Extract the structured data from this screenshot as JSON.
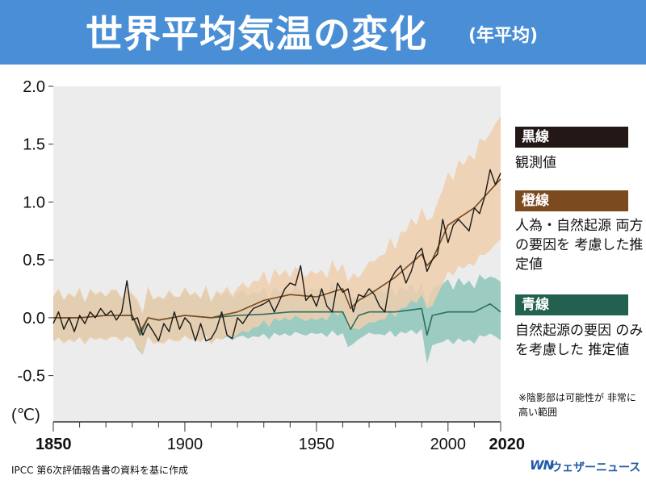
{
  "header": {
    "title": "世界平均気温の変化",
    "subtitle": "(年平均)"
  },
  "legend": [
    {
      "head": "黒線",
      "desc": "観測値",
      "color": "#231815"
    },
    {
      "head": "橙線",
      "desc": "人為・自然起源 両方の要因を 考慮した推定値",
      "color": "#7b4a1e"
    },
    {
      "head": "青線",
      "desc": "自然起源の要因 のみを考慮した 推定値",
      "color": "#22614f"
    }
  ],
  "note": "※陰影部は可能性が 非常に高い範囲",
  "source": "IPCC 第6次評価報告書の資料を基に作成",
  "logo": {
    "mark": "WN",
    "text": "ウェザーニュース"
  },
  "chart_data": {
    "type": "line",
    "xlim": [
      1850,
      2020
    ],
    "ylim": [
      -0.9,
      2.0
    ],
    "y_unit": "(℃)",
    "x_ticks": [
      "1850",
      "1900",
      "1950",
      "2000",
      "2020"
    ],
    "y_ticks": [
      "2.0",
      "1.5",
      "1.0",
      "0.5",
      "0.0",
      "-0.5"
    ],
    "colors": {
      "observed": "#1a1a1a",
      "both": "#7b4a1e",
      "both_band": "#f0cfae",
      "natural": "#2f6e5e",
      "natural_band": "#8ec6bb",
      "plot_bg": "#ececec"
    },
    "series": [
      {
        "name": "黒線",
        "x": [
          1850,
          1852,
          1854,
          1856,
          1858,
          1860,
          1862,
          1864,
          1866,
          1868,
          1870,
          1872,
          1874,
          1876,
          1878,
          1880,
          1882,
          1884,
          1886,
          1888,
          1890,
          1892,
          1894,
          1896,
          1898,
          1900,
          1902,
          1904,
          1906,
          1908,
          1910,
          1912,
          1914,
          1916,
          1918,
          1920,
          1922,
          1924,
          1926,
          1928,
          1930,
          1932,
          1934,
          1936,
          1938,
          1940,
          1942,
          1944,
          1946,
          1948,
          1950,
          1952,
          1954,
          1956,
          1958,
          1960,
          1962,
          1964,
          1966,
          1968,
          1970,
          1972,
          1974,
          1976,
          1978,
          1980,
          1982,
          1984,
          1986,
          1988,
          1990,
          1992,
          1994,
          1996,
          1998,
          2000,
          2002,
          2004,
          2006,
          2008,
          2010,
          2012,
          2014,
          2016,
          2018,
          2020
        ],
        "y": [
          -0.05,
          0.05,
          -0.1,
          0.0,
          -0.12,
          0.02,
          -0.05,
          0.05,
          0.0,
          0.08,
          0.02,
          0.06,
          -0.02,
          0.05,
          0.32,
          -0.02,
          0.0,
          -0.15,
          -0.05,
          -0.12,
          -0.2,
          -0.05,
          -0.12,
          0.05,
          -0.1,
          0.0,
          -0.05,
          -0.2,
          -0.05,
          -0.2,
          -0.18,
          -0.1,
          0.05,
          -0.15,
          -0.18,
          0.0,
          -0.05,
          0.02,
          0.08,
          0.1,
          0.12,
          0.15,
          0.05,
          0.15,
          0.25,
          0.3,
          0.28,
          0.45,
          0.15,
          0.2,
          0.1,
          0.25,
          0.1,
          0.05,
          0.3,
          0.22,
          0.25,
          0.05,
          0.2,
          0.18,
          0.25,
          0.2,
          0.1,
          0.05,
          0.32,
          0.4,
          0.45,
          0.3,
          0.4,
          0.55,
          0.6,
          0.4,
          0.5,
          0.55,
          0.85,
          0.65,
          0.8,
          0.85,
          0.8,
          0.75,
          0.95,
          0.9,
          1.05,
          1.28,
          1.15,
          1.25
        ]
      },
      {
        "name": "橙線",
        "x": [
          1850,
          1860,
          1870,
          1880,
          1883,
          1886,
          1890,
          1900,
          1910,
          1920,
          1930,
          1940,
          1950,
          1960,
          1963,
          1966,
          1970,
          1980,
          1990,
          1992,
          1994,
          2000,
          2010,
          2020
        ],
        "y": [
          0.0,
          0.0,
          0.02,
          0.02,
          -0.12,
          0.0,
          -0.02,
          0.02,
          0.0,
          0.05,
          0.15,
          0.2,
          0.18,
          0.25,
          0.08,
          0.15,
          0.2,
          0.35,
          0.55,
          0.45,
          0.5,
          0.8,
          0.95,
          1.2
        ]
      },
      {
        "name": "青線",
        "x": [
          1850,
          1860,
          1870,
          1880,
          1883,
          1886,
          1890,
          1900,
          1910,
          1920,
          1930,
          1940,
          1950,
          1960,
          1963,
          1966,
          1970,
          1980,
          1990,
          1992,
          1994,
          2000,
          2010,
          2016,
          2020
        ],
        "y": [
          0.0,
          0.0,
          0.02,
          0.02,
          -0.15,
          0.0,
          -0.02,
          0.02,
          0.0,
          0.02,
          0.03,
          0.05,
          0.05,
          0.05,
          -0.1,
          0.02,
          0.05,
          0.05,
          0.08,
          -0.15,
          0.02,
          0.05,
          0.05,
          0.12,
          0.05
        ]
      }
    ]
  }
}
